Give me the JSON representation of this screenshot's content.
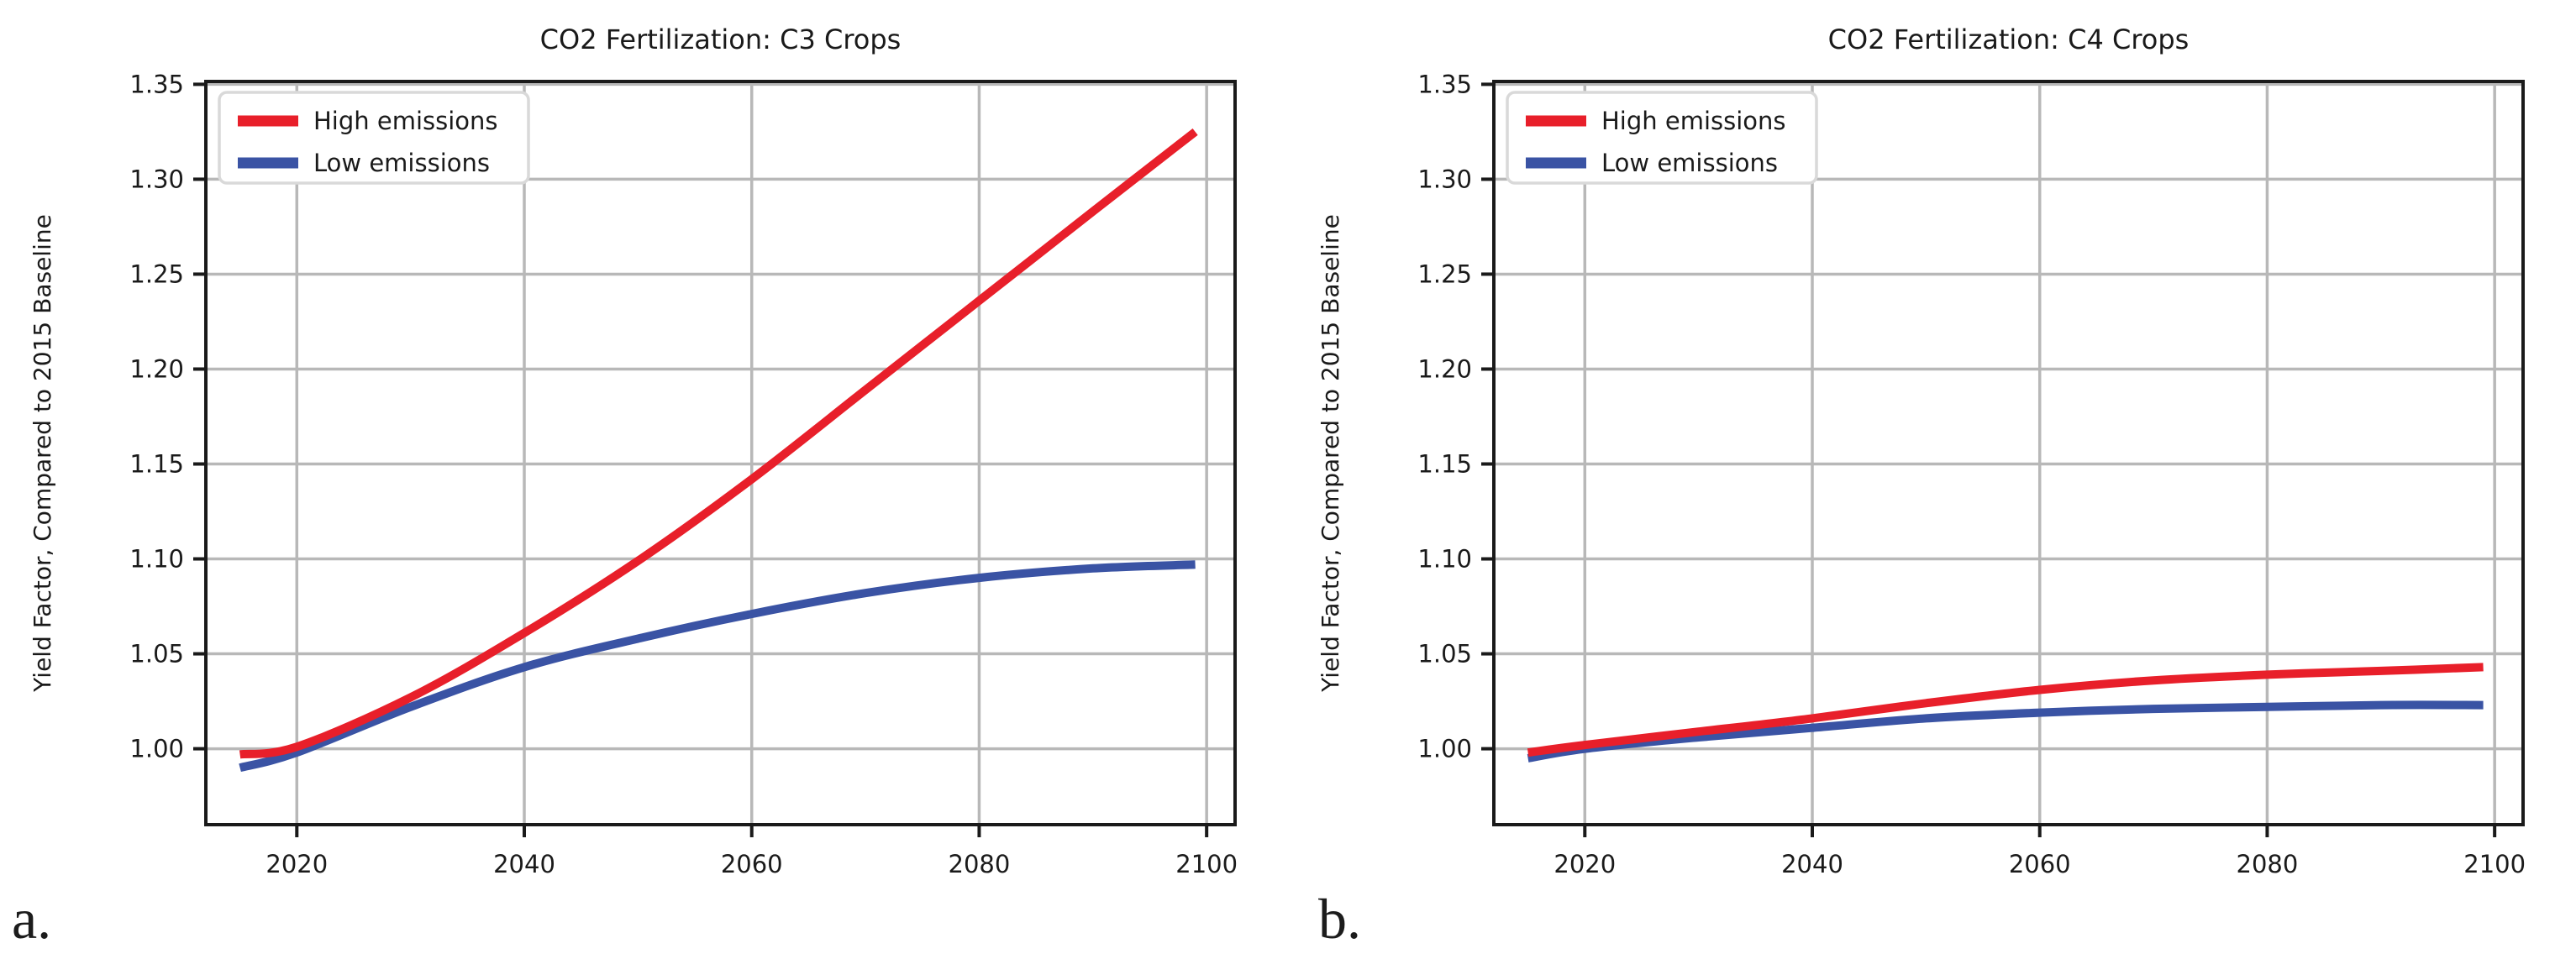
{
  "page": {
    "background": "#ffffff"
  },
  "panel_labels": {
    "a": "a.",
    "b": "b."
  },
  "colors": {
    "high_emissions": "#e81f2a",
    "low_emissions": "#3a53a4",
    "grid": "#b8b8b8",
    "spine": "#1a1a1a",
    "text": "#1a1a1a",
    "legend_border": "#d9d9d9",
    "legend_fill": "#ffffff"
  },
  "chart_data": [
    {
      "type": "line",
      "title": "CO2 Fertilization: C3 Crops",
      "xlabel": "",
      "ylabel": "Yield Factor, Compared to 2015 Baseline",
      "xlim": [
        2012,
        2102.5
      ],
      "ylim": [
        0.96,
        1.3515
      ],
      "xticks": [
        2020,
        2040,
        2060,
        2080,
        2100
      ],
      "xtick_labels": [
        "2020",
        "2040",
        "2060",
        "2080",
        "2100"
      ],
      "yticks": [
        1.0,
        1.05,
        1.1,
        1.15,
        1.2,
        1.25,
        1.3,
        1.35
      ],
      "ytick_labels": [
        "1.00",
        "1.05",
        "1.10",
        "1.15",
        "1.20",
        "1.25",
        "1.30",
        "1.35"
      ],
      "grid": true,
      "legend_position": "upper left",
      "x": [
        2015,
        2020,
        2030,
        2040,
        2050,
        2060,
        2070,
        2080,
        2090,
        2099
      ],
      "series": [
        {
          "name": "High emissions",
          "color_key": "high_emissions",
          "values": [
            0.997,
            1.001,
            1.027,
            1.061,
            1.099,
            1.142,
            1.189,
            1.236,
            1.283,
            1.325
          ]
        },
        {
          "name": "Low emissions",
          "color_key": "low_emissions",
          "values": [
            0.99,
            0.998,
            1.022,
            1.043,
            1.058,
            1.071,
            1.082,
            1.09,
            1.095,
            1.097
          ]
        }
      ]
    },
    {
      "type": "line",
      "title": "CO2 Fertilization: C4 Crops",
      "xlabel": "",
      "ylabel": "Yield Factor, Compared to 2015 Baseline",
      "xlim": [
        2012,
        2102.5
      ],
      "ylim": [
        0.96,
        1.3515
      ],
      "xticks": [
        2020,
        2040,
        2060,
        2080,
        2100
      ],
      "xtick_labels": [
        "2020",
        "2040",
        "2060",
        "2080",
        "2100"
      ],
      "yticks": [
        1.0,
        1.05,
        1.1,
        1.15,
        1.2,
        1.25,
        1.3,
        1.35
      ],
      "ytick_labels": [
        "1.00",
        "1.05",
        "1.10",
        "1.15",
        "1.20",
        "1.25",
        "1.30",
        "1.35"
      ],
      "grid": true,
      "legend_position": "upper left",
      "x": [
        2015,
        2020,
        2030,
        2040,
        2050,
        2060,
        2070,
        2080,
        2090,
        2099
      ],
      "series": [
        {
          "name": "High emissions",
          "color_key": "high_emissions",
          "values": [
            0.998,
            1.002,
            1.009,
            1.016,
            1.024,
            1.031,
            1.036,
            1.039,
            1.041,
            1.043
          ]
        },
        {
          "name": "Low emissions",
          "color_key": "low_emissions",
          "values": [
            0.995,
            1.0,
            1.006,
            1.011,
            1.016,
            1.019,
            1.021,
            1.022,
            1.023,
            1.023
          ]
        }
      ]
    }
  ]
}
